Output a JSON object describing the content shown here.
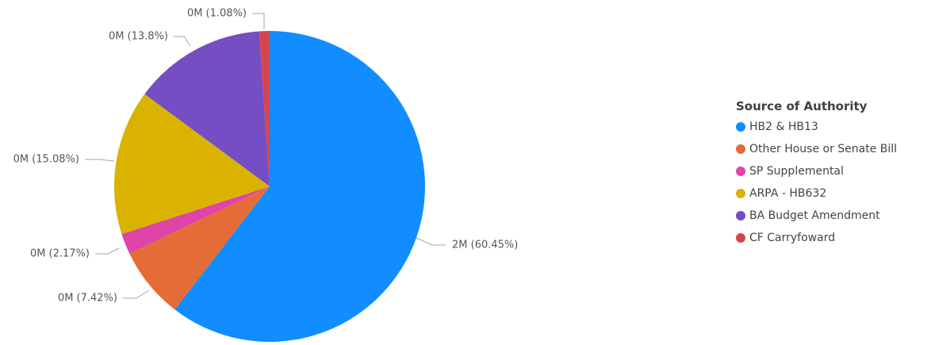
{
  "chart_data": {
    "type": "pie",
    "title": "",
    "legend_title": "Source of Authority",
    "legend_position": "right",
    "slices": [
      {
        "name": "HB2 & HB13",
        "percent": 60.45,
        "label": "2M (60.45%)",
        "color": "#118DFF"
      },
      {
        "name": "Other House or Senate Bill",
        "percent": 7.42,
        "label": "0M (7.42%)",
        "color": "#E66C37"
      },
      {
        "name": "SP Supplemental",
        "percent": 2.17,
        "label": "0M (2.17%)",
        "color": "#E044A7"
      },
      {
        "name": "ARPA - HB632",
        "percent": 15.08,
        "label": "0M (15.08%)",
        "color": "#D9B300"
      },
      {
        "name": "BA Budget Amendment",
        "percent": 13.8,
        "label": "0M (13.8%)",
        "color": "#744EC2"
      },
      {
        "name": "CF Carryfoward",
        "percent": 1.08,
        "label": "0M (1.08%)",
        "color": "#D64550"
      }
    ]
  }
}
